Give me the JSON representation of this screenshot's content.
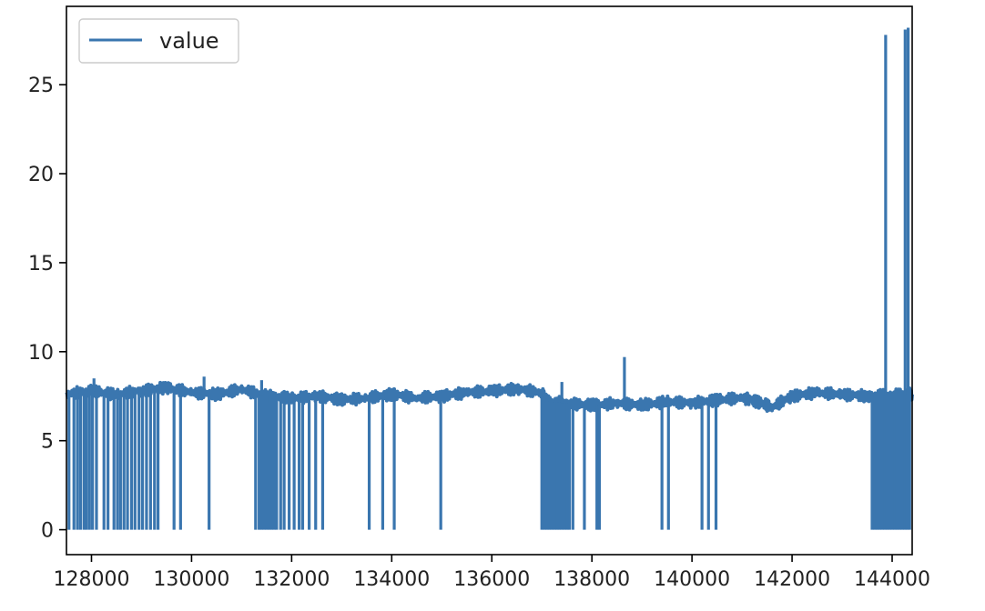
{
  "chart_data": {
    "type": "line",
    "title": "",
    "xlabel": "",
    "ylabel": "",
    "xlim": [
      127500,
      144400
    ],
    "ylim": [
      -1.4,
      29.4
    ],
    "grid": false,
    "legend_placement": "upper-left",
    "x_ticks": [
      {
        "value": 128000,
        "label": "128000"
      },
      {
        "value": 130000,
        "label": "130000"
      },
      {
        "value": 132000,
        "label": "132000"
      },
      {
        "value": 134000,
        "label": "134000"
      },
      {
        "value": 136000,
        "label": "136000"
      },
      {
        "value": 138000,
        "label": "138000"
      },
      {
        "value": 140000,
        "label": "140000"
      },
      {
        "value": 142000,
        "label": "142000"
      },
      {
        "value": 144000,
        "label": "144000"
      }
    ],
    "y_ticks": [
      {
        "value": 0,
        "label": "0"
      },
      {
        "value": 5,
        "label": "5"
      },
      {
        "value": 10,
        "label": "10"
      },
      {
        "value": 15,
        "label": "15"
      },
      {
        "value": 20,
        "label": "20"
      },
      {
        "value": 25,
        "label": "25"
      }
    ],
    "series": [
      {
        "name": "value",
        "color": "#3a76af",
        "baseline": [
          [
            127500,
            7.6
          ],
          [
            128000,
            7.8
          ],
          [
            128500,
            7.6
          ],
          [
            129000,
            7.8
          ],
          [
            129500,
            8.0
          ],
          [
            130000,
            7.7
          ],
          [
            130500,
            7.6
          ],
          [
            131000,
            7.9
          ],
          [
            131500,
            7.5
          ],
          [
            132000,
            7.4
          ],
          [
            132500,
            7.5
          ],
          [
            133000,
            7.3
          ],
          [
            133500,
            7.4
          ],
          [
            134000,
            7.6
          ],
          [
            134500,
            7.4
          ],
          [
            135000,
            7.5
          ],
          [
            135500,
            7.7
          ],
          [
            136000,
            7.8
          ],
          [
            136500,
            7.9
          ],
          [
            137000,
            7.7
          ],
          [
            137100,
            7.2
          ],
          [
            137500,
            7.1
          ],
          [
            138000,
            7.0
          ],
          [
            138500,
            7.1
          ],
          [
            139000,
            7.0
          ],
          [
            139500,
            7.2
          ],
          [
            140000,
            7.1
          ],
          [
            140500,
            7.3
          ],
          [
            141000,
            7.4
          ],
          [
            141300,
            7.2
          ],
          [
            141600,
            6.9
          ],
          [
            142000,
            7.5
          ],
          [
            142500,
            7.7
          ],
          [
            143000,
            7.6
          ],
          [
            143500,
            7.5
          ],
          [
            144000,
            7.6
          ],
          [
            144400,
            7.6
          ]
        ],
        "drops": [
          127550,
          127650,
          127720,
          127780,
          127850,
          127900,
          127960,
          128020,
          128100,
          128250,
          128330,
          128450,
          128520,
          128580,
          128650,
          128720,
          128800,
          128870,
          128950,
          129020,
          129100,
          129180,
          129260,
          129330,
          129650,
          129780,
          130350,
          131280,
          131350,
          131400,
          131450,
          131500,
          131550,
          131600,
          131650,
          131700,
          131780,
          131850,
          131950,
          132050,
          132150,
          132220,
          132350,
          132480,
          132620,
          133550,
          133820,
          134050,
          134980,
          137000,
          137050,
          137100,
          137150,
          137200,
          137250,
          137300,
          137350,
          137400,
          137450,
          137500,
          137550,
          137620,
          137850,
          138100,
          138150,
          139400,
          139530,
          140200,
          140330,
          140480,
          143600,
          143650,
          143700,
          143750,
          143800,
          143850,
          143900,
          143950,
          144000,
          144050,
          144100,
          144150,
          144200,
          144250,
          144300,
          144350
        ],
        "spikes": [
          [
            128050,
            8.5
          ],
          [
            130250,
            8.6
          ],
          [
            131400,
            8.4
          ],
          [
            137400,
            8.3
          ],
          [
            138650,
            9.7
          ],
          [
            143870,
            27.8
          ],
          [
            144260,
            28.1
          ],
          [
            144320,
            28.2
          ]
        ]
      }
    ]
  }
}
